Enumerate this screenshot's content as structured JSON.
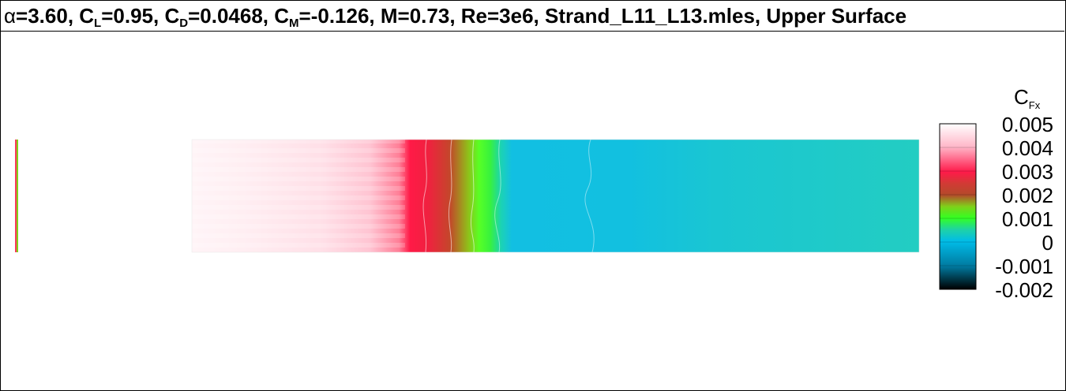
{
  "title": {
    "alpha_symbol": "α",
    "alpha_value": "=3.60, ",
    "cl_label": "C",
    "cl_sub": "L",
    "cl_value": "=0.95, ",
    "cd_label": "C",
    "cd_sub": "D",
    "cd_value": "=0.0468, ",
    "cm_label": "C",
    "cm_sub": "M",
    "cm_value": "=-0.126, M=0.73, Re=3e6, Strand_L11_L13.mles, Upper Surface"
  },
  "legend": {
    "label": "C",
    "label_sub": "Fx",
    "ticks": [
      "0.005",
      "0.004",
      "0.003",
      "0.002",
      "0.001",
      "0",
      "-0.001",
      "-0.002"
    ],
    "colors": [
      "#ffffff",
      "#ffb6c8",
      "#ff1a4a",
      "#b34a2a",
      "#7fd11a",
      "#33ff22",
      "#1ed2a6",
      "#00bce8",
      "#007aa0",
      "#000000"
    ]
  },
  "field": {
    "regions": [
      {
        "name": "laminar-high",
        "color": "#ffe3ea"
      },
      {
        "name": "peak",
        "color": "#ff1a47"
      },
      {
        "name": "transition",
        "color": "#c3472a"
      },
      {
        "name": "green-band",
        "color": "#58ff25"
      },
      {
        "name": "near-zero",
        "color": "#12bfe2"
      },
      {
        "name": "aft",
        "color": "#23cdc2"
      }
    ]
  }
}
